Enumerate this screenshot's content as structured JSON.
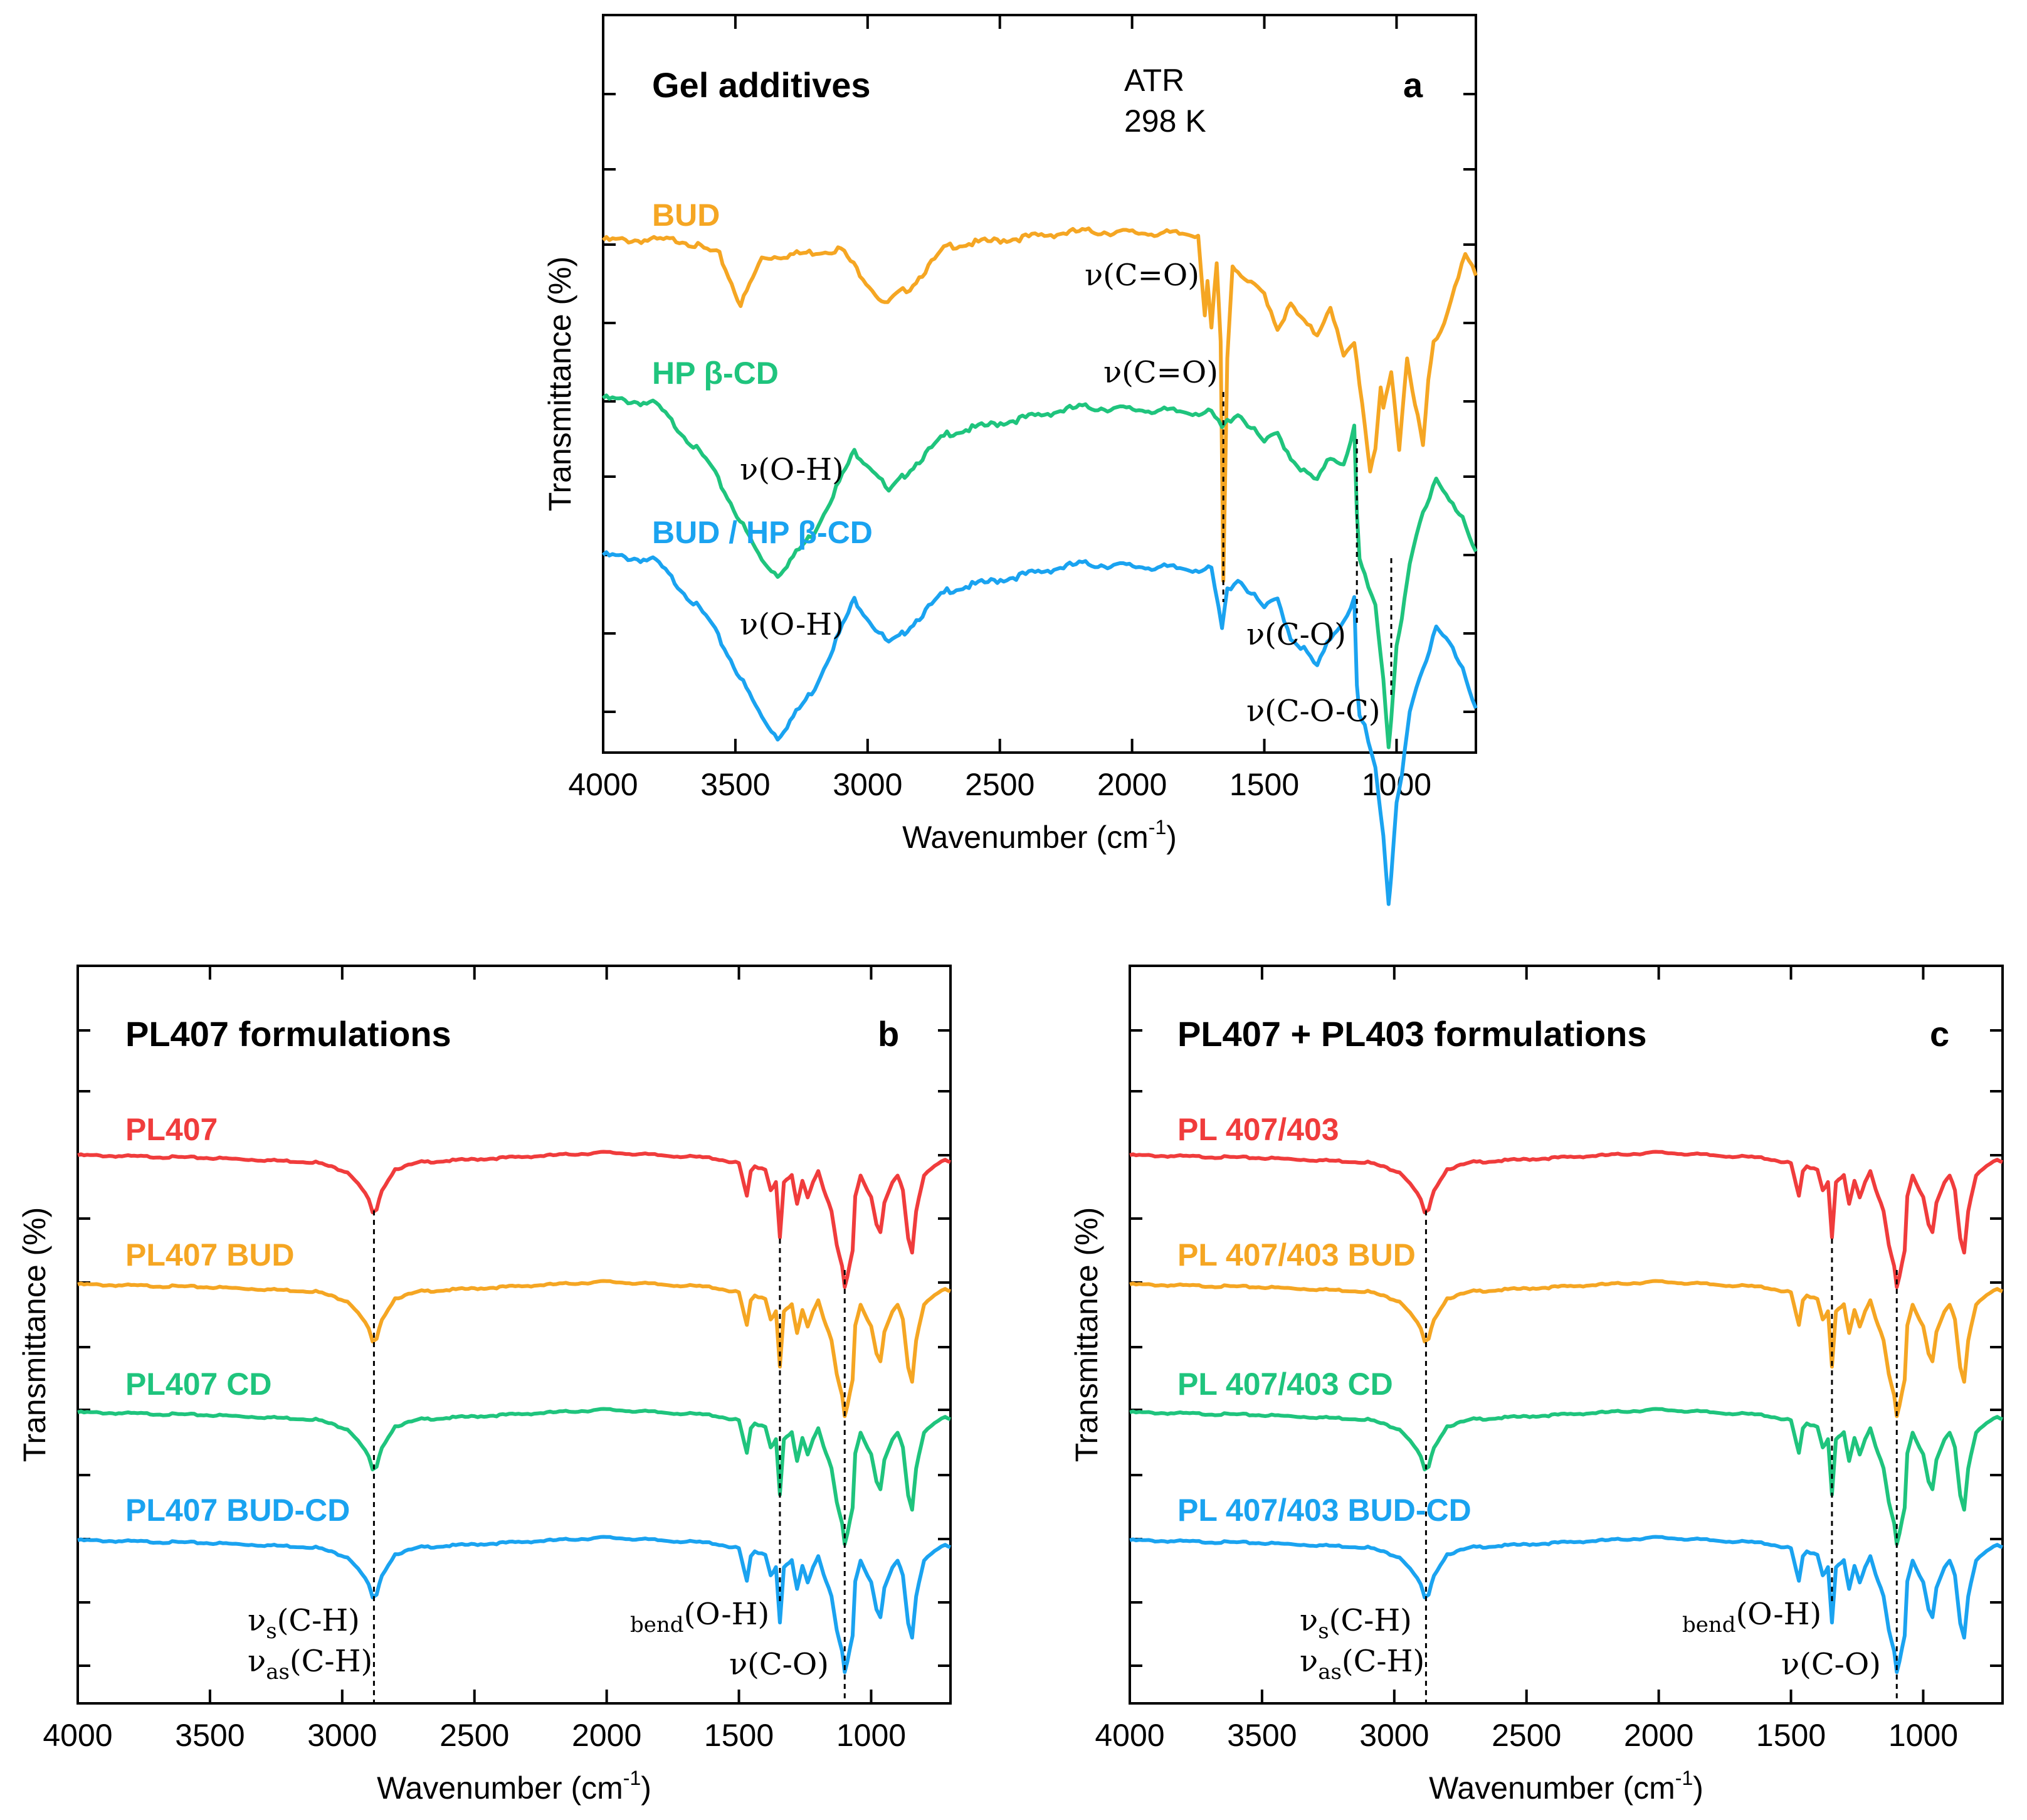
{
  "colors": {
    "red": "#f03c3c",
    "orange": "#f5a623",
    "green": "#1fc47d",
    "blue": "#1aa3f0"
  },
  "x_axis": {
    "label": "Wavenumber (cm",
    "label_sup": "-1",
    "label_close": ")",
    "ticks": [
      4000,
      3500,
      3000,
      2500,
      2000,
      1500,
      1000
    ],
    "xlim": [
      4000,
      700
    ]
  },
  "y_axis": {
    "label": "Transmittance (%)"
  },
  "chart_data": [
    {
      "type": "line",
      "panel": "a",
      "title": "Gel additives",
      "note": [
        "ATR",
        "298 K"
      ],
      "xlabel": "Wavenumber (cm-1)",
      "ylabel": "Transmittance (%)",
      "xlim": [
        4000,
        700
      ],
      "series": [
        {
          "name": "BUD",
          "color": "#f5a623",
          "x": [
            4000,
            3700,
            3560,
            3480,
            3400,
            3100,
            2970,
            2935,
            2880,
            2840,
            2700,
            2200,
            1750,
            1725,
            1715,
            1700,
            1680,
            1665,
            1655,
            1640,
            1620,
            1600,
            1500,
            1450,
            1400,
            1350,
            1300,
            1250,
            1200,
            1160,
            1130,
            1100,
            1080,
            1060,
            1050,
            1020,
            990,
            960,
            930,
            900,
            880,
            860,
            820,
            780,
            740,
            700
          ],
          "y": [
            0,
            0,
            -5,
            -22,
            -6,
            -3,
            -18,
            -22,
            -18,
            -16,
            -2,
            3,
            2,
            -25,
            -15,
            -30,
            -8,
            -35,
            -115,
            -40,
            -8,
            -12,
            -18,
            -30,
            -22,
            -28,
            -32,
            -22,
            -40,
            -35,
            -55,
            -78,
            -70,
            -50,
            -58,
            -45,
            -70,
            -40,
            -55,
            -70,
            -48,
            -35,
            -28,
            -15,
            -5,
            -12
          ]
        },
        {
          "name": "HP β-CD",
          "color": "#1fc47d",
          "x": [
            4000,
            3800,
            3600,
            3400,
            3340,
            3200,
            3050,
            2970,
            2920,
            2880,
            2850,
            2700,
            2200,
            1700,
            1660,
            1640,
            1600,
            1500,
            1450,
            1400,
            1350,
            1300,
            1250,
            1200,
            1160,
            1150,
            1140,
            1120,
            1080,
            1050,
            1030,
            1020,
            1000,
            980,
            950,
            900,
            850,
            800,
            750,
            700
          ],
          "y": [
            0,
            -2,
            -22,
            -55,
            -60,
            -45,
            -18,
            -25,
            -32,
            -28,
            -25,
            -12,
            -3,
            -5,
            -10,
            -8,
            -5,
            -15,
            -12,
            -20,
            -25,
            -28,
            -20,
            -22,
            -10,
            -40,
            -55,
            -60,
            -70,
            -95,
            -118,
            -110,
            -85,
            -75,
            -55,
            -38,
            -28,
            -35,
            -40,
            -52
          ]
        },
        {
          "name": "BUD / HP β-CD",
          "color": "#1aa3f0",
          "x": [
            4000,
            3800,
            3600,
            3400,
            3340,
            3200,
            3050,
            2970,
            2920,
            2880,
            2850,
            2700,
            2200,
            1700,
            1660,
            1640,
            1600,
            1500,
            1450,
            1400,
            1350,
            1300,
            1250,
            1200,
            1160,
            1150,
            1140,
            1120,
            1080,
            1050,
            1030,
            1020,
            1000,
            980,
            950,
            900,
            850,
            800,
            750,
            700
          ],
          "y": [
            0,
            -2,
            -22,
            -55,
            -62,
            -45,
            -15,
            -25,
            -30,
            -28,
            -25,
            -12,
            -3,
            -5,
            -25,
            -12,
            -8,
            -18,
            -15,
            -28,
            -32,
            -38,
            -28,
            -22,
            -15,
            -45,
            -55,
            -58,
            -72,
            -95,
            -118,
            -110,
            -85,
            -75,
            -52,
            -38,
            -25,
            -30,
            -38,
            -52
          ]
        }
      ],
      "annotations": [
        "ν(C=O)",
        "ν(C=O)",
        "ν(O-H)",
        "ν(O-H)",
        "ν(C-O)",
        "ν(C-O-C)"
      ]
    },
    {
      "type": "line",
      "panel": "b",
      "title": "PL407 formulations",
      "xlabel": "Wavenumber (cm-1)",
      "ylabel": "Transmittance (%)",
      "xlim": [
        4000,
        700
      ],
      "series": [
        {
          "name": "PL407",
          "color": "#f03c3c"
        },
        {
          "name": "PL407 BUD",
          "color": "#f5a623"
        },
        {
          "name": "PL407 CD",
          "color": "#1fc47d"
        },
        {
          "name": "PL407 BUD-CD",
          "color": "#1aa3f0"
        }
      ],
      "shared_profile": {
        "x": [
          4000,
          3500,
          3100,
          2980,
          2940,
          2900,
          2885,
          2870,
          2850,
          2800,
          2700,
          2500,
          2000,
          1600,
          1500,
          1470,
          1455,
          1440,
          1400,
          1380,
          1360,
          1345,
          1330,
          1300,
          1280,
          1260,
          1240,
          1220,
          1200,
          1180,
          1150,
          1130,
          1110,
          1100,
          1090,
          1070,
          1060,
          1040,
          1000,
          980,
          965,
          950,
          920,
          900,
          880,
          860,
          845,
          830,
          800,
          760,
          720,
          700
        ],
        "y": [
          0,
          -2,
          -5,
          -12,
          -20,
          -32,
          -42,
          -40,
          -25,
          -10,
          -5,
          -3,
          2,
          -2,
          -6,
          -30,
          -12,
          -8,
          -10,
          -25,
          -20,
          -60,
          -20,
          -15,
          -35,
          -18,
          -30,
          -20,
          -12,
          -25,
          -40,
          -65,
          -80,
          -95,
          -88,
          -70,
          -30,
          -15,
          -30,
          -50,
          -55,
          -35,
          -20,
          -15,
          -25,
          -60,
          -70,
          -40,
          -15,
          -8,
          -3,
          -5
        ]
      },
      "annotations": [
        "νs(C-H)",
        "νas(C-H)",
        "bend(O-H)",
        "ν(C-O)"
      ]
    },
    {
      "type": "line",
      "panel": "c",
      "title": "PL407 + PL403 formulations",
      "xlabel": "Wavenumber (cm-1)",
      "ylabel": "Transmittance (%)",
      "xlim": [
        4000,
        700
      ],
      "series": [
        {
          "name": "PL 407/403",
          "color": "#f03c3c"
        },
        {
          "name": "PL 407/403 BUD",
          "color": "#f5a623"
        },
        {
          "name": "PL 407/403 CD",
          "color": "#1fc47d"
        },
        {
          "name": "PL 407/403 BUD-CD",
          "color": "#1aa3f0"
        }
      ],
      "annotations": [
        "νs(C-H)",
        "νas(C-H)",
        "bend(O-H)",
        "ν(C-O)"
      ]
    }
  ],
  "panel_a": {
    "title": "Gel additives",
    "letter": "a",
    "note1": "ATR",
    "note2": "298 K",
    "label1": "BUD",
    "label2": "HP β-CD",
    "label3": "BUD / HP β-CD",
    "ann_co1": "ν(C=O)",
    "ann_co2": "ν(C=O)",
    "ann_oh1": "ν(O-H)",
    "ann_oh2": "ν(O-H)",
    "ann_c_o": "ν(C-O)",
    "ann_coc": "ν(C-O-C)"
  },
  "panel_b": {
    "title": "PL407 formulations",
    "letter": "b",
    "label1": "PL407",
    "label2": "PL407 BUD",
    "label3": "PL407 CD",
    "label4": "PL407 BUD-CD",
    "ann_vs": "ν",
    "ann_vs_sub": "s",
    "ann_vs_rest": "(C-H)",
    "ann_vas": "ν",
    "ann_vas_sub": "as",
    "ann_vas_rest": "(C-H)",
    "ann_bend_sub": "bend",
    "ann_bend_rest": "(O-H)",
    "ann_co": "ν(C-O)"
  },
  "panel_c": {
    "title": "PL407 + PL403 formulations",
    "letter": "c",
    "label1": "PL 407/403",
    "label2": "PL 407/403 BUD",
    "label3": "PL 407/403 CD",
    "label4": "PL 407/403 BUD-CD",
    "ann_vs": "ν",
    "ann_vs_sub": "s",
    "ann_vs_rest": "(C-H)",
    "ann_vas": "ν",
    "ann_vas_sub": "as",
    "ann_vas_rest": "(C-H)",
    "ann_bend_sub": "bend",
    "ann_bend_rest": "(O-H)",
    "ann_co": "ν(C-O)"
  }
}
